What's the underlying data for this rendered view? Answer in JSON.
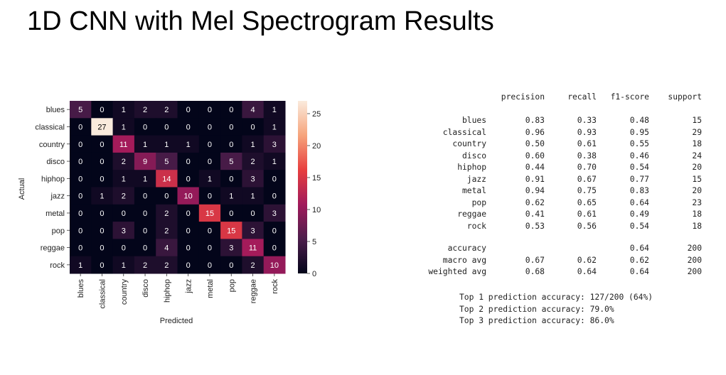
{
  "slide": {
    "title": "1D CNN with Mel Spectrogram Results"
  },
  "chart_data": [
    {
      "type": "heatmap",
      "title": "",
      "xlabel": "Predicted",
      "ylabel": "Actual",
      "x_categories": [
        "blues",
        "classical",
        "country",
        "disco",
        "hiphop",
        "jazz",
        "metal",
        "pop",
        "reggae",
        "rock"
      ],
      "y_categories": [
        "blues",
        "classical",
        "country",
        "disco",
        "hiphop",
        "jazz",
        "metal",
        "pop",
        "reggae",
        "rock"
      ],
      "values": [
        [
          5,
          0,
          1,
          2,
          2,
          0,
          0,
          0,
          4,
          1
        ],
        [
          0,
          27,
          1,
          0,
          0,
          0,
          0,
          0,
          0,
          1
        ],
        [
          0,
          0,
          11,
          1,
          1,
          1,
          0,
          0,
          1,
          3
        ],
        [
          0,
          0,
          2,
          9,
          5,
          0,
          0,
          5,
          2,
          1
        ],
        [
          0,
          0,
          1,
          1,
          14,
          0,
          1,
          0,
          3,
          0
        ],
        [
          0,
          1,
          2,
          0,
          0,
          10,
          0,
          1,
          1,
          0
        ],
        [
          0,
          0,
          0,
          0,
          2,
          0,
          15,
          0,
          0,
          3
        ],
        [
          0,
          0,
          3,
          0,
          2,
          0,
          0,
          15,
          3,
          0
        ],
        [
          0,
          0,
          0,
          0,
          4,
          0,
          0,
          3,
          11,
          0
        ],
        [
          1,
          0,
          1,
          2,
          2,
          0,
          0,
          0,
          2,
          10
        ]
      ],
      "vmin": 0,
      "vmax": 27,
      "colorbar_ticks": [
        0,
        5,
        10,
        15,
        20,
        25
      ],
      "colormap": "rocket",
      "colorbar_stops": [
        "#03051a",
        "#4c1d4b",
        "#a11a5b",
        "#e83f3f",
        "#f6a47c",
        "#faebdd"
      ]
    },
    {
      "type": "table",
      "columns": [
        "precision",
        "recall",
        "f1-score",
        "support"
      ],
      "rows": [
        {
          "label": "blues",
          "values": [
            "0.83",
            "0.33",
            "0.48",
            "15"
          ]
        },
        {
          "label": "classical",
          "values": [
            "0.96",
            "0.93",
            "0.95",
            "29"
          ]
        },
        {
          "label": "country",
          "values": [
            "0.50",
            "0.61",
            "0.55",
            "18"
          ]
        },
        {
          "label": "disco",
          "values": [
            "0.60",
            "0.38",
            "0.46",
            "24"
          ]
        },
        {
          "label": "hiphop",
          "values": [
            "0.44",
            "0.70",
            "0.54",
            "20"
          ]
        },
        {
          "label": "jazz",
          "values": [
            "0.91",
            "0.67",
            "0.77",
            "15"
          ]
        },
        {
          "label": "metal",
          "values": [
            "0.94",
            "0.75",
            "0.83",
            "20"
          ]
        },
        {
          "label": "pop",
          "values": [
            "0.62",
            "0.65",
            "0.64",
            "23"
          ]
        },
        {
          "label": "reggae",
          "values": [
            "0.41",
            "0.61",
            "0.49",
            "18"
          ]
        },
        {
          "label": "rock",
          "values": [
            "0.53",
            "0.56",
            "0.54",
            "18"
          ]
        }
      ],
      "summary_rows": [
        {
          "label": "accuracy",
          "values": [
            "",
            "",
            "0.64",
            "200"
          ]
        },
        {
          "label": "macro avg",
          "values": [
            "0.67",
            "0.62",
            "0.62",
            "200"
          ]
        },
        {
          "label": "weighted avg",
          "values": [
            "0.68",
            "0.64",
            "0.64",
            "200"
          ]
        }
      ],
      "notes": [
        "Top 1 prediction accuracy: 127/200 (64%)",
        "Top 2 prediction accuracy: 79.0%",
        "Top 3 prediction accuracy: 86.0%"
      ]
    }
  ]
}
